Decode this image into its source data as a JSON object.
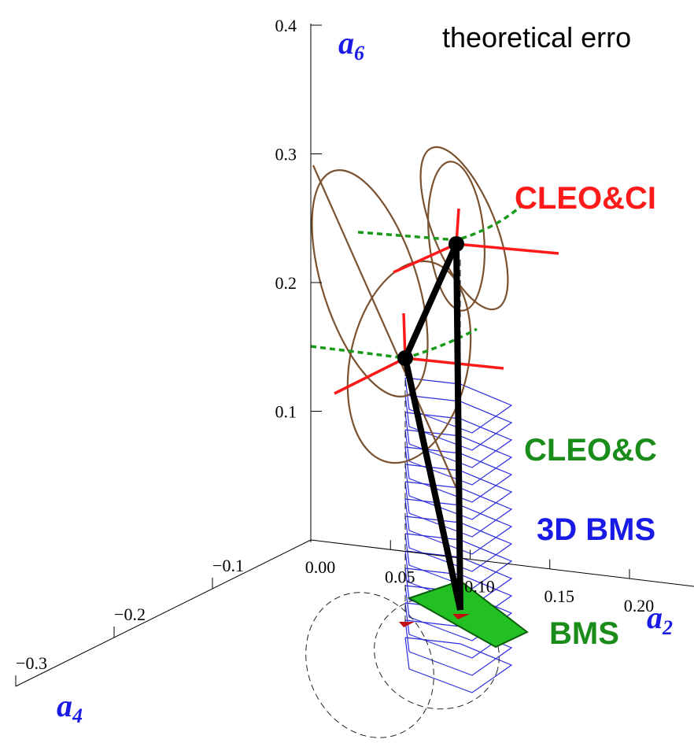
{
  "chart_data": {
    "type": "surface3d",
    "title": "theoretical erro",
    "axes": {
      "a6": {
        "symbol": "a",
        "subscript": "6",
        "lim": [
          0,
          0.4
        ],
        "ticks": [
          0.1,
          0.2,
          0.3,
          0.4
        ]
      },
      "a2": {
        "symbol": "a",
        "subscript": "2",
        "lim": [
          0,
          0.2
        ],
        "ticks": [
          {
            "value": 0,
            "label": "0.00"
          },
          0.05,
          {
            "value": 0.1,
            "label": "0.10"
          },
          0.15,
          {
            "value": 0.2,
            "label": "0.20"
          }
        ]
      },
      "a4": {
        "symbol": "a",
        "subscript": "4",
        "lim": [
          0,
          -0.3
        ],
        "ticks": [
          {
            "value": -0.1,
            "label": "−0.1"
          },
          {
            "value": -0.2,
            "label": "−0.2"
          },
          {
            "value": -0.3,
            "label": "−0.3"
          }
        ]
      }
    },
    "annotations": [
      {
        "text": "CLEO&CI",
        "color": "#ff1a1a"
      },
      {
        "text": "CLEO&C",
        "color": "#1a8c1a"
      },
      {
        "text": "3D BMS",
        "color": "#1a1ae6"
      },
      {
        "text": "BMS",
        "color": "#1a8c1a"
      }
    ]
  }
}
